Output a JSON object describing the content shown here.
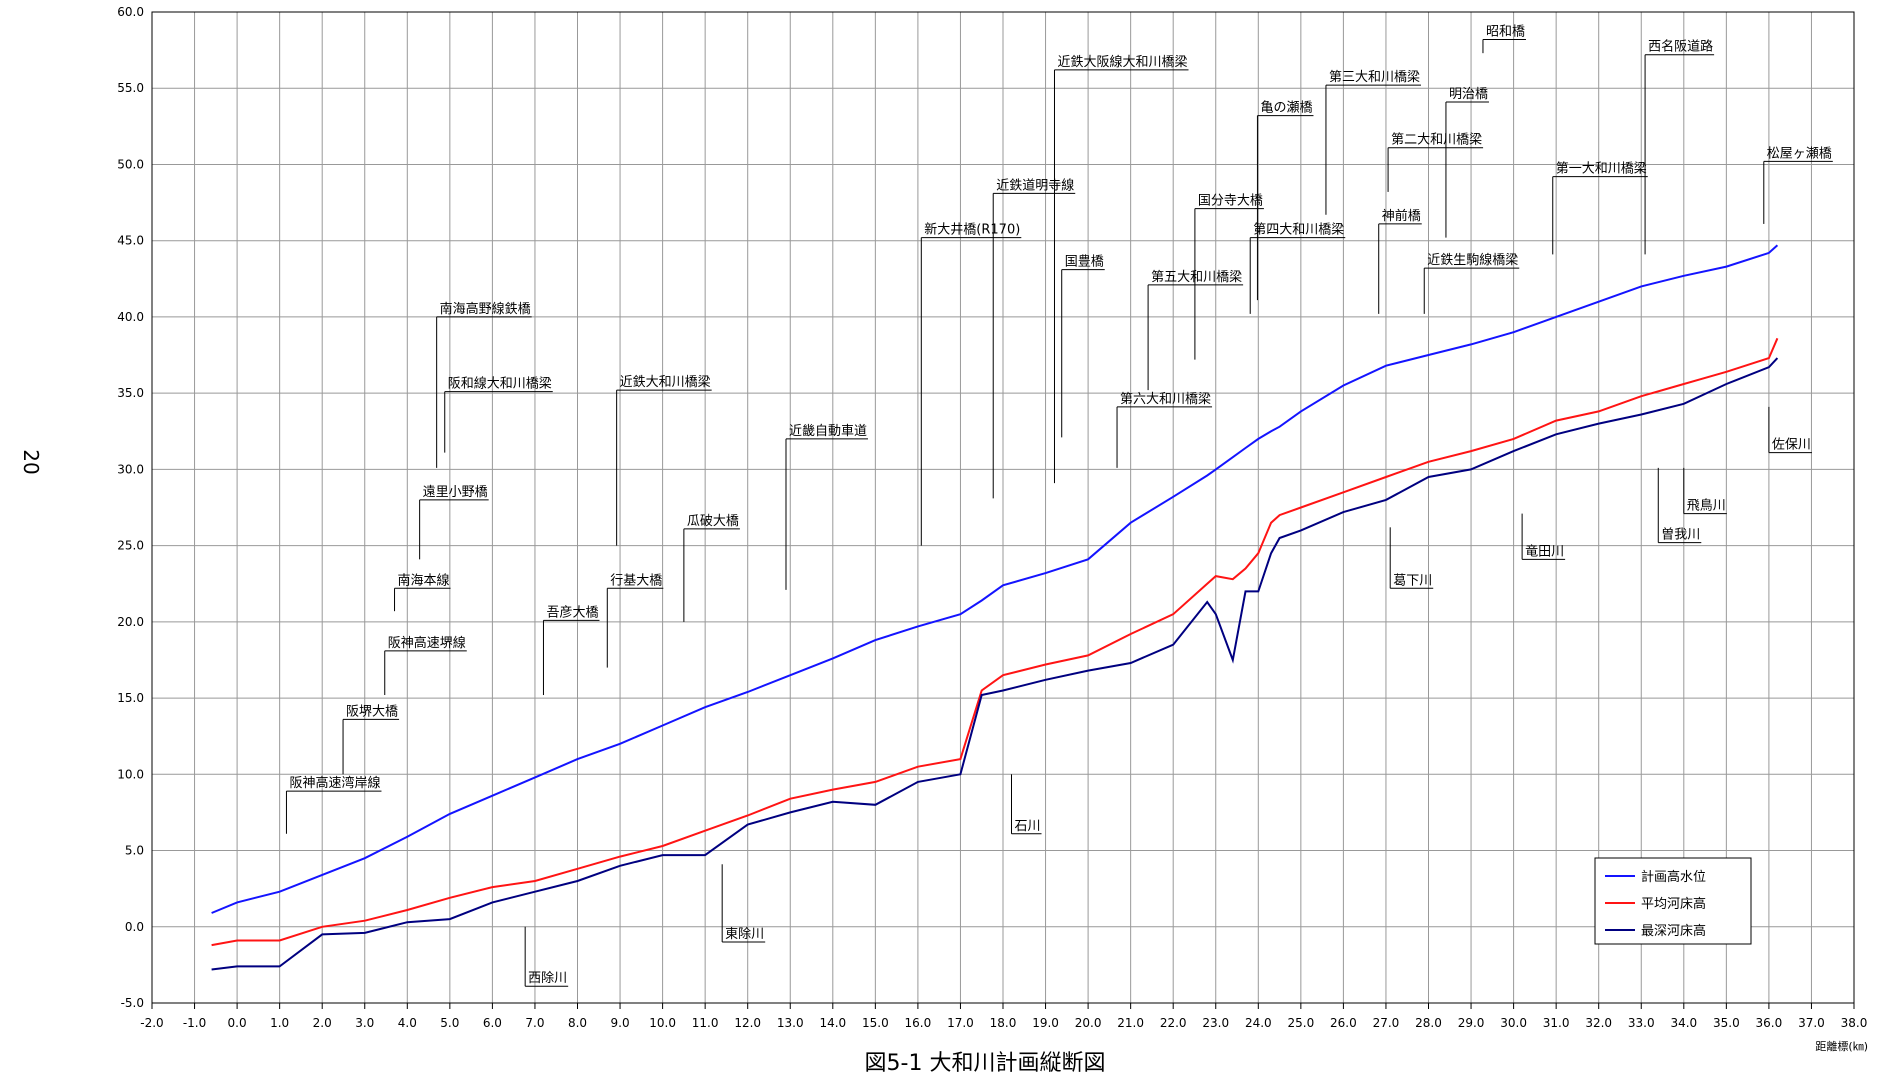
{
  "page_number": "20",
  "chart_data": {
    "type": "line",
    "title": "図5-1 大和川計画縦断図",
    "xlabel": "距離標(㎞)",
    "grid": true,
    "legend": "lower right",
    "xlim": [
      -2,
      38
    ],
    "ylim": [
      -5,
      60
    ],
    "xticks": [
      {
        "value": -2,
        "label": "-2.0"
      },
      {
        "value": -1,
        "label": "-1.0"
      },
      {
        "value": 0,
        "label": "0.0"
      },
      {
        "value": 1,
        "label": "1.0"
      },
      {
        "value": 2,
        "label": "2.0"
      },
      {
        "value": 3,
        "label": "3.0"
      },
      {
        "value": 4,
        "label": "4.0"
      },
      {
        "value": 5,
        "label": "5.0"
      },
      {
        "value": 6,
        "label": "6.0"
      },
      {
        "value": 7,
        "label": "7.0"
      },
      {
        "value": 8,
        "label": "8.0"
      },
      {
        "value": 9,
        "label": "9.0"
      },
      {
        "value": 10,
        "label": "10.0"
      },
      {
        "value": 11,
        "label": "11.0"
      },
      {
        "value": 12,
        "label": "12.0"
      },
      {
        "value": 13,
        "label": "13.0"
      },
      {
        "value": 14,
        "label": "14.0"
      },
      {
        "value": 15,
        "label": "15.0"
      },
      {
        "value": 16,
        "label": "16.0"
      },
      {
        "value": 17,
        "label": "17.0"
      },
      {
        "value": 18,
        "label": "18.0"
      },
      {
        "value": 19,
        "label": "19.0"
      },
      {
        "value": 20,
        "label": "20.0"
      },
      {
        "value": 21,
        "label": "21.0"
      },
      {
        "value": 22,
        "label": "22.0"
      },
      {
        "value": 23,
        "label": "23.0"
      },
      {
        "value": 24,
        "label": "24.0"
      },
      {
        "value": 25,
        "label": "25.0"
      },
      {
        "value": 26,
        "label": "26.0"
      },
      {
        "value": 27,
        "label": "27.0"
      },
      {
        "value": 28,
        "label": "28.0"
      },
      {
        "value": 29,
        "label": "29.0"
      },
      {
        "value": 30,
        "label": "30.0"
      },
      {
        "value": 31,
        "label": "31.0"
      },
      {
        "value": 32,
        "label": "32.0"
      },
      {
        "value": 33,
        "label": "33.0"
      },
      {
        "value": 34,
        "label": "34.0"
      },
      {
        "value": 35,
        "label": "35.0"
      },
      {
        "value": 36,
        "label": "36.0"
      },
      {
        "value": 37,
        "label": "37.0"
      },
      {
        "value": 38,
        "label": "38.0"
      }
    ],
    "yticks": [
      {
        "value": -5,
        "label": "-5.0"
      },
      {
        "value": 0,
        "label": "0.0"
      },
      {
        "value": 5,
        "label": "5.0"
      },
      {
        "value": 10,
        "label": "10.0"
      },
      {
        "value": 15,
        "label": "15.0"
      },
      {
        "value": 20,
        "label": "20.0"
      },
      {
        "value": 25,
        "label": "25.0"
      },
      {
        "value": 30,
        "label": "30.0"
      },
      {
        "value": 35,
        "label": "35.0"
      },
      {
        "value": 40,
        "label": "40.0"
      },
      {
        "value": 45,
        "label": "45.0"
      },
      {
        "value": 50,
        "label": "50.0"
      },
      {
        "value": 55,
        "label": "55.0"
      },
      {
        "value": 60,
        "label": "60.0"
      }
    ],
    "x": [
      -0.6,
      0,
      1,
      2,
      3,
      4,
      5,
      6,
      7,
      8,
      9,
      10,
      11,
      12,
      13,
      14,
      15,
      16,
      17,
      17.5,
      18,
      19,
      20,
      21,
      22,
      22.8,
      23,
      23.4,
      23.7,
      24,
      24.3,
      24.5,
      25,
      26,
      27,
      28,
      29,
      30,
      31,
      32,
      33,
      34,
      35,
      36,
      36.2
    ],
    "series": [
      {
        "name": "計画高水位",
        "color": "#1414ff",
        "values": [
          0.9,
          1.6,
          2.3,
          3.4,
          4.5,
          5.9,
          7.4,
          8.6,
          9.8,
          11.0,
          12.0,
          13.2,
          14.4,
          15.4,
          16.5,
          17.6,
          18.8,
          19.7,
          20.5,
          21.4,
          22.4,
          23.2,
          24.1,
          26.5,
          28.2,
          29.6,
          30.0,
          30.8,
          31.4,
          32.0,
          32.5,
          32.8,
          33.8,
          35.5,
          36.8,
          37.5,
          38.2,
          39.0,
          40.0,
          41.0,
          42.0,
          42.7,
          43.3,
          44.2,
          44.7
        ]
      },
      {
        "name": "平均河床高",
        "color": "#ff1414",
        "values": [
          -1.2,
          -0.9,
          -0.9,
          0.0,
          0.4,
          1.1,
          1.9,
          2.6,
          3.0,
          3.8,
          4.6,
          5.3,
          6.3,
          7.3,
          8.4,
          9.0,
          9.5,
          10.5,
          11.0,
          15.5,
          16.5,
          17.2,
          17.8,
          19.2,
          20.5,
          22.5,
          23.0,
          22.8,
          23.5,
          24.5,
          26.5,
          27.0,
          27.5,
          28.5,
          29.5,
          30.5,
          31.2,
          32.0,
          33.2,
          33.8,
          34.8,
          35.6,
          36.4,
          37.3,
          38.6
        ]
      },
      {
        "name": "最深河床高",
        "color": "#000080",
        "values": [
          -2.8,
          -2.6,
          -2.6,
          -0.5,
          -0.4,
          0.3,
          0.5,
          1.6,
          2.3,
          3.0,
          4.0,
          4.7,
          4.7,
          6.7,
          7.5,
          8.2,
          8.0,
          9.5,
          10.0,
          15.2,
          15.5,
          16.2,
          16.8,
          17.3,
          18.5,
          21.3,
          20.5,
          17.5,
          22.0,
          22.0,
          24.5,
          25.5,
          26.0,
          27.2,
          28.0,
          29.5,
          30.0,
          31.2,
          32.3,
          33.0,
          33.6,
          34.3,
          35.6,
          36.7,
          37.3
        ]
      }
    ],
    "annotations": [
      {
        "text": "阪神高速湾岸線",
        "x": 1.16,
        "y_from": 6.1,
        "y_to": 8.9
      },
      {
        "text": "阪堺大橋",
        "x": 2.49,
        "y_from": 10.0,
        "y_to": 13.6
      },
      {
        "text": "阪神高速堺線",
        "x": 3.47,
        "y_from": 15.2,
        "y_to": 18.1
      },
      {
        "text": "南海本線",
        "x": 3.7,
        "y_from": 20.7,
        "y_to": 22.2
      },
      {
        "text": "遠里小野橋",
        "x": 4.29,
        "y_from": 24.1,
        "y_to": 28.0
      },
      {
        "text": "南海高野線鉄橋",
        "x": 4.69,
        "y_from": 30.1,
        "y_to": 40.0
      },
      {
        "text": "阪和線大和川橋梁",
        "x": 4.88,
        "y_from": 31.1,
        "y_to": 35.1
      },
      {
        "text": "吾彦大橋",
        "x": 7.2,
        "y_from": 15.2,
        "y_to": 20.1
      },
      {
        "text": "行基大橋",
        "x": 8.7,
        "y_from": 17.0,
        "y_to": 22.2
      },
      {
        "text": "近鉄大和川橋梁",
        "x": 8.92,
        "y_from": 25.0,
        "y_to": 35.2
      },
      {
        "text": "瓜破大橋",
        "x": 10.5,
        "y_from": 20.0,
        "y_to": 26.1
      },
      {
        "text": "近畿自動車道",
        "x": 12.9,
        "y_from": 22.1,
        "y_to": 32.0
      },
      {
        "text": "新大井橋(R170)",
        "x": 16.08,
        "y_from": 25.0,
        "y_to": 45.2
      },
      {
        "text": "近鉄道明寺線",
        "x": 17.77,
        "y_from": 28.1,
        "y_to": 48.1
      },
      {
        "text": "近鉄大阪線大和川橋梁",
        "x": 19.21,
        "y_from": 29.1,
        "y_to": 56.2
      },
      {
        "text": "国豊橋",
        "x": 19.38,
        "y_from": 32.1,
        "y_to": 43.1
      },
      {
        "text": "第六大和川橋梁",
        "x": 20.68,
        "y_from": 30.1,
        "y_to": 34.1
      },
      {
        "text": "第五大和川橋梁",
        "x": 21.41,
        "y_from": 35.2,
        "y_to": 42.1
      },
      {
        "text": "国分寺大橋",
        "x": 22.51,
        "y_from": 37.2,
        "y_to": 47.1
      },
      {
        "text": "第四大和川橋梁",
        "x": 23.81,
        "y_from": 40.2,
        "y_to": 45.2
      },
      {
        "text": "亀の瀬橋",
        "x": 23.98,
        "y_from": 41.1,
        "y_to": 53.2
      },
      {
        "text": "第三大和川橋梁",
        "x": 25.59,
        "y_from": 46.7,
        "y_to": 55.2
      },
      {
        "text": "神前橋",
        "x": 26.83,
        "y_from": 40.2,
        "y_to": 46.1
      },
      {
        "text": "第二大和川橋梁",
        "x": 27.05,
        "y_from": 48.2,
        "y_to": 51.1
      },
      {
        "text": "近鉄生駒線橋梁",
        "x": 27.9,
        "y_from": 40.2,
        "y_to": 43.2
      },
      {
        "text": "明治橋",
        "x": 28.41,
        "y_from": 45.2,
        "y_to": 54.1
      },
      {
        "text": "昭和橋",
        "x": 29.28,
        "y_from": 57.3,
        "y_to": 58.2
      },
      {
        "text": "第一大和川橋梁",
        "x": 30.92,
        "y_from": 44.1,
        "y_to": 49.2
      },
      {
        "text": "西名阪道路",
        "x": 33.09,
        "y_from": 44.1,
        "y_to": 57.2
      },
      {
        "text": "松屋ヶ瀬橋",
        "x": 35.88,
        "y_from": 46.1,
        "y_to": 50.2
      },
      {
        "text": "西除川",
        "x": 6.77,
        "y_from": 0.0,
        "y_to": -3.9
      },
      {
        "text": "東除川",
        "x": 11.4,
        "y_from": 4.1,
        "y_to": -1.0
      },
      {
        "text": "石川",
        "x": 18.2,
        "y_from": 10.0,
        "y_to": 6.1
      },
      {
        "text": "葛下川",
        "x": 27.1,
        "y_from": 26.2,
        "y_to": 22.2
      },
      {
        "text": "竜田川",
        "x": 30.2,
        "y_from": 27.1,
        "y_to": 24.1
      },
      {
        "text": "曽我川",
        "x": 33.4,
        "y_from": 30.1,
        "y_to": 25.2
      },
      {
        "text": "飛鳥川",
        "x": 34.0,
        "y_from": 30.1,
        "y_to": 27.1
      },
      {
        "text": "佐保川",
        "x": 36.0,
        "y_from": 34.1,
        "y_to": 31.1
      }
    ]
  }
}
